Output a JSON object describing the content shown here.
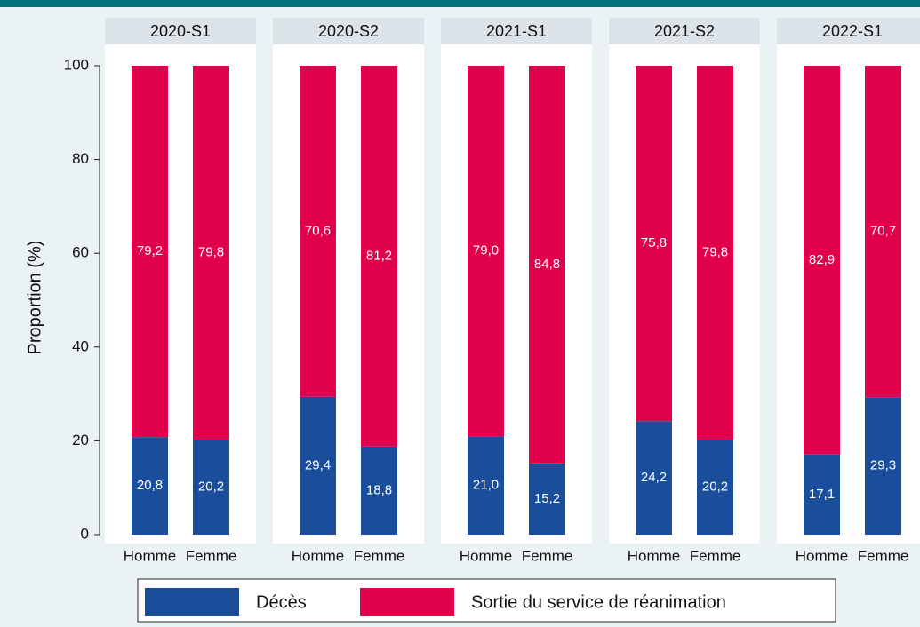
{
  "chart_data": {
    "type": "bar",
    "stacked": true,
    "ylabel": "Proportion (%)",
    "ylim": [
      0,
      100
    ],
    "yticks": [
      0,
      20,
      40,
      60,
      80,
      100
    ],
    "facets": [
      "2020-S1",
      "2020-S2",
      "2021-S1",
      "2021-S2",
      "2022-S1"
    ],
    "categories": [
      "Homme",
      "Femme"
    ],
    "series": [
      {
        "name": "Décès",
        "color": "#1a4e9a",
        "values": [
          [
            20.8,
            20.2
          ],
          [
            29.4,
            18.8
          ],
          [
            21.0,
            15.2
          ],
          [
            24.2,
            20.2
          ],
          [
            17.1,
            29.3
          ]
        ],
        "value_labels": [
          [
            "20,8",
            "20,2"
          ],
          [
            "29,4",
            "18,8"
          ],
          [
            "21,0",
            "15,2"
          ],
          [
            "24,2",
            "20,2"
          ],
          [
            "17,1",
            "29,3"
          ]
        ]
      },
      {
        "name": "Sortie du service de réanimation",
        "color": "#e0004d",
        "values": [
          [
            79.2,
            79.8
          ],
          [
            70.6,
            81.2
          ],
          [
            79.0,
            84.8
          ],
          [
            75.8,
            79.8
          ],
          [
            82.9,
            70.7
          ]
        ],
        "value_labels": [
          [
            "79,2",
            "79,8"
          ],
          [
            "70,6",
            "81,2"
          ],
          [
            "79,0",
            "84,8"
          ],
          [
            "75,8",
            "79,8"
          ],
          [
            "82,9",
            "70,7"
          ]
        ]
      }
    ]
  }
}
